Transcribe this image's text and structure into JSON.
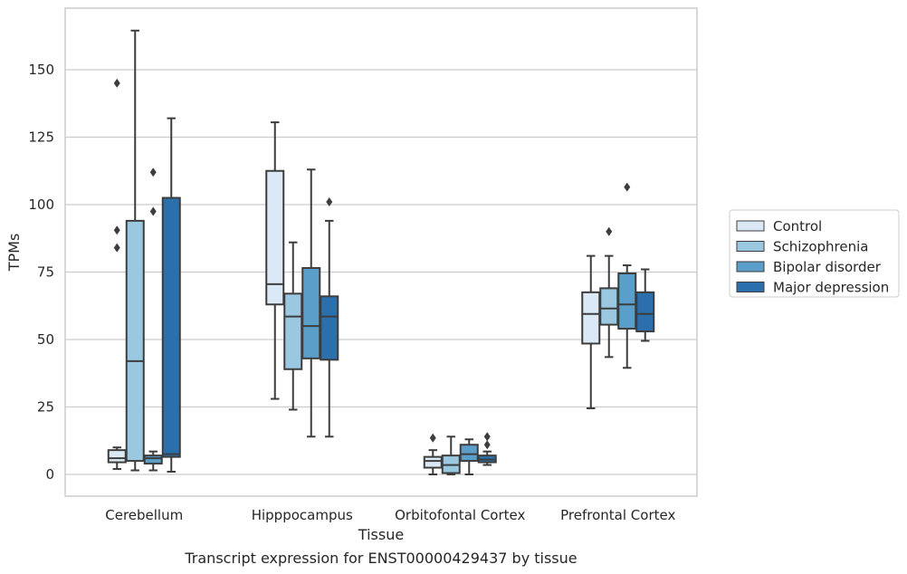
{
  "chart_data": {
    "type": "box",
    "title": "",
    "caption": "Transcript expression for ENST00000429437 by tissue",
    "xlabel": "Tissue",
    "ylabel": "TPMs",
    "ylim": [
      -8,
      173
    ],
    "yticks": [
      0,
      25,
      50,
      75,
      100,
      125,
      150
    ],
    "grid": "horizontal",
    "legend_position": "right",
    "categories": [
      "Cerebellum",
      "Hipppocampus",
      "Orbitofontal Cortex",
      "Prefrontal Cortex"
    ],
    "series": [
      {
        "name": "Control",
        "color": "#dbe9f6",
        "boxes": [
          {
            "whisker_low": 2,
            "q1": 4.5,
            "median": 6,
            "q3": 9,
            "whisker_high": 10,
            "outliers": [
              84,
              90.5,
              145
            ]
          },
          {
            "whisker_low": 28,
            "q1": 63,
            "median": 70.5,
            "q3": 112.5,
            "whisker_high": 130.5,
            "outliers": []
          },
          {
            "whisker_low": 0,
            "q1": 2.5,
            "median": 5,
            "q3": 6.5,
            "whisker_high": 9,
            "outliers": [
              13.5
            ]
          },
          {
            "whisker_low": 24.5,
            "q1": 48.5,
            "median": 59.5,
            "q3": 67.5,
            "whisker_high": 81,
            "outliers": []
          }
        ]
      },
      {
        "name": "Schizophrenia",
        "color": "#9ac8e0",
        "boxes": [
          {
            "whisker_low": 1.5,
            "q1": 5,
            "median": 42,
            "q3": 94,
            "whisker_high": 164.5,
            "outliers": []
          },
          {
            "whisker_low": 24,
            "q1": 39,
            "median": 58.5,
            "q3": 67,
            "whisker_high": 86,
            "outliers": []
          },
          {
            "whisker_low": 0,
            "q1": 0.5,
            "median": 3.5,
            "q3": 7,
            "whisker_high": 14,
            "outliers": []
          },
          {
            "whisker_low": 43.5,
            "q1": 55.5,
            "median": 61.5,
            "q3": 69,
            "whisker_high": 81,
            "outliers": [
              90
            ]
          }
        ]
      },
      {
        "name": "Bipolar disorder",
        "color": "#5a9ec9",
        "boxes": [
          {
            "whisker_low": 1.5,
            "q1": 4,
            "median": 6,
            "q3": 7,
            "whisker_high": 8.5,
            "outliers": [
              97.5,
              112
            ]
          },
          {
            "whisker_low": 14,
            "q1": 43,
            "median": 55,
            "q3": 76.5,
            "whisker_high": 113,
            "outliers": []
          },
          {
            "whisker_low": 0,
            "q1": 5,
            "median": 7.5,
            "q3": 11,
            "whisker_high": 13,
            "outliers": []
          },
          {
            "whisker_low": 39.5,
            "q1": 54,
            "median": 63,
            "q3": 74.5,
            "whisker_high": 77.5,
            "outliers": [
              106.5
            ]
          }
        ]
      },
      {
        "name": "Major depression",
        "color": "#2c6fad",
        "boxes": [
          {
            "whisker_low": 1,
            "q1": 6.5,
            "median": 7.5,
            "q3": 102.5,
            "whisker_high": 132,
            "outliers": []
          },
          {
            "whisker_low": 14,
            "q1": 42.5,
            "median": 58.5,
            "q3": 66,
            "whisker_high": 94,
            "outliers": [
              101
            ]
          },
          {
            "whisker_low": 3.5,
            "q1": 4.5,
            "median": 5.5,
            "q3": 7,
            "whisker_high": 8.5,
            "outliers": [
              11,
              14
            ]
          },
          {
            "whisker_low": 49.5,
            "q1": 53,
            "median": 59.5,
            "q3": 67.5,
            "whisker_high": 76,
            "outliers": []
          }
        ]
      }
    ]
  }
}
